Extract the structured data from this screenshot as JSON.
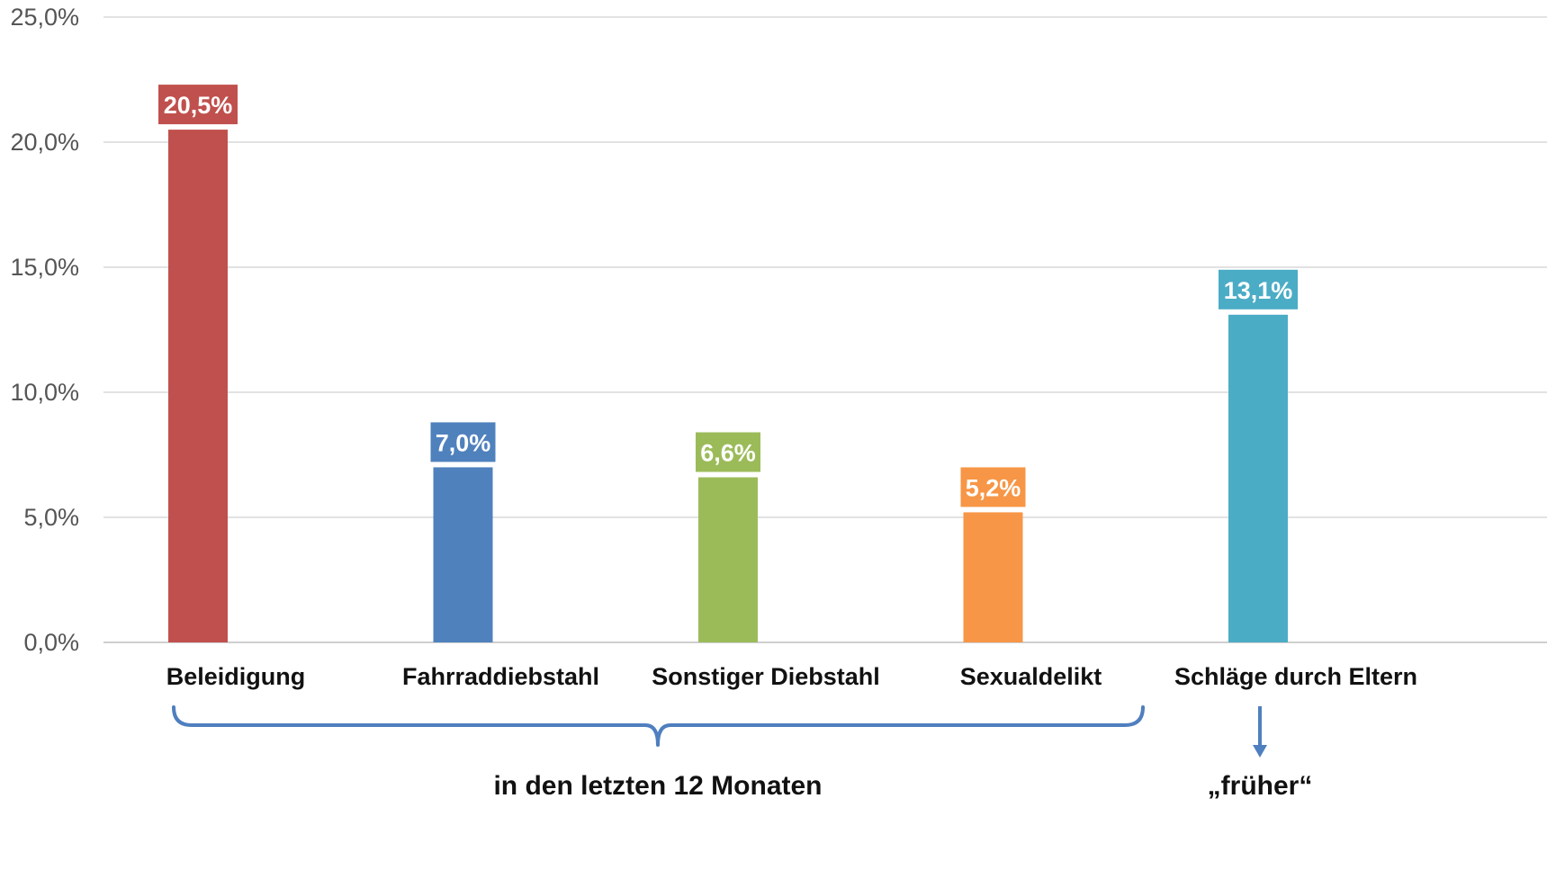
{
  "chart_data": {
    "type": "bar",
    "categories": [
      "Beleidigung",
      "Fahrraddiebstahl",
      "Sonstiger Diebstahl",
      "Sexualdelikt",
      "Schläge durch Eltern"
    ],
    "values": [
      20.5,
      7.0,
      6.6,
      5.2,
      13.1
    ],
    "data_labels": [
      "20,5%",
      "7,0%",
      "6,6%",
      "5,2%",
      "13,1%"
    ],
    "colors": [
      "#c0504d",
      "#4f81bd",
      "#9bbb59",
      "#f79646",
      "#4bacc6"
    ],
    "ylim": [
      0,
      25
    ],
    "yticks": [
      0,
      5,
      10,
      15,
      20,
      25
    ],
    "ytick_labels": [
      "0,0%",
      "5,0%",
      "10,0%",
      "15,0%",
      "20,0%",
      "25,0%"
    ],
    "grid": true,
    "legend": "none",
    "annotations": [
      {
        "text": "in den letzten 12 Monaten",
        "categories": [
          "Beleidigung",
          "Fahrraddiebstahl",
          "Sonstiger Diebstahl",
          "Sexualdelikt"
        ],
        "marker": "bracket"
      },
      {
        "text": "„früher“",
        "categories": [
          "Schläge durch Eltern"
        ],
        "marker": "arrow"
      }
    ],
    "annotation_color": "#4f7fbf"
  }
}
